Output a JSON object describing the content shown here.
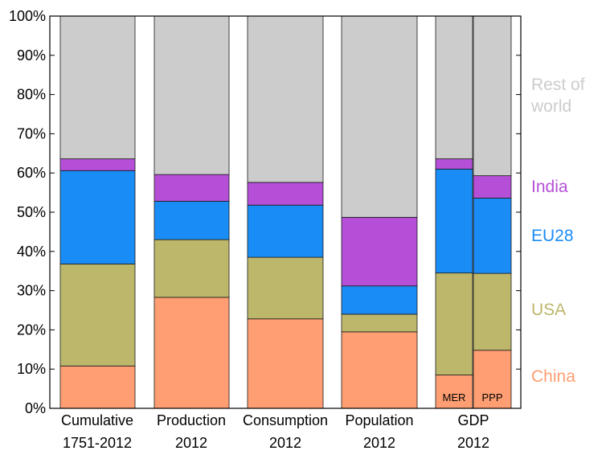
{
  "chart_data": {
    "type": "bar",
    "stacked": true,
    "normalized_to": "100%",
    "grid": false,
    "ylim": [
      0,
      100
    ],
    "yticks": [
      0,
      10,
      20,
      30,
      40,
      50,
      60,
      70,
      80,
      90,
      100
    ],
    "ytick_labels": [
      "0%",
      "10%",
      "20%",
      "30%",
      "40%",
      "50%",
      "60%",
      "70%",
      "80%",
      "90%",
      "100%"
    ],
    "categories": [
      {
        "line1": "Cumulative",
        "line2": "1751-2012"
      },
      {
        "line1": "Production",
        "line2": "2012"
      },
      {
        "line1": "Consumption",
        "line2": "2012"
      },
      {
        "line1": "Population",
        "line2": "2012"
      },
      {
        "line1": "GDP",
        "line2": "2012"
      }
    ],
    "bars": [
      {
        "category": 0,
        "label": "",
        "values": {
          "China": 10.8,
          "USA": 26.0,
          "EU28": 23.8,
          "India": 3.0,
          "Rest of world": 36.4
        }
      },
      {
        "category": 1,
        "label": "",
        "values": {
          "China": 28.3,
          "USA": 14.7,
          "EU28": 9.8,
          "India": 6.8,
          "Rest of world": 40.4
        }
      },
      {
        "category": 2,
        "label": "",
        "values": {
          "China": 22.8,
          "USA": 15.7,
          "EU28": 13.3,
          "India": 5.8,
          "Rest of world": 42.4
        }
      },
      {
        "category": 3,
        "label": "",
        "values": {
          "China": 19.5,
          "USA": 4.5,
          "EU28": 7.2,
          "India": 17.5,
          "Rest of world": 51.3
        }
      },
      {
        "category": 4,
        "label": "MER",
        "values": {
          "China": 8.5,
          "USA": 26.0,
          "EU28": 26.5,
          "India": 2.6,
          "Rest of world": 36.4
        }
      },
      {
        "category": 4,
        "label": "PPP",
        "values": {
          "China": 14.8,
          "USA": 19.6,
          "EU28": 19.2,
          "India": 5.7,
          "Rest of world": 40.7
        }
      }
    ],
    "series": [
      {
        "name": "China",
        "color": "#FF9E72"
      },
      {
        "name": "USA",
        "color": "#BDB76B"
      },
      {
        "name": "EU28",
        "color": "#1A8CF6"
      },
      {
        "name": "India",
        "color": "#B54FD8"
      },
      {
        "name": "Rest of world",
        "color": "#CCCCCC"
      }
    ],
    "legend": {
      "placement": "right",
      "entries": [
        {
          "series": "Rest of world",
          "lines": [
            "Rest of",
            "world"
          ],
          "color": "#CCCCCC"
        },
        {
          "series": "India",
          "lines": [
            "India"
          ],
          "color": "#B54FD8"
        },
        {
          "series": "EU28",
          "lines": [
            "EU28"
          ],
          "color": "#1A8CF6"
        },
        {
          "series": "USA",
          "lines": [
            "USA"
          ],
          "color": "#BDB76B"
        },
        {
          "series": "China",
          "lines": [
            "China"
          ],
          "color": "#FF9E72"
        }
      ]
    }
  }
}
